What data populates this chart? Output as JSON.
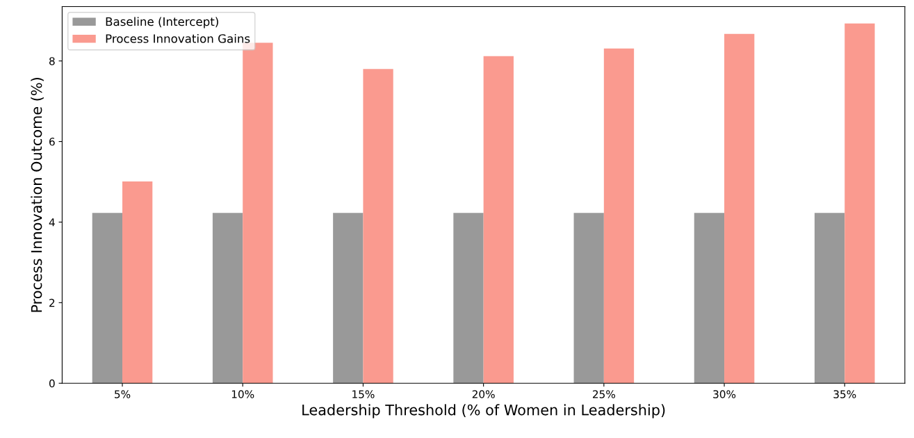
{
  "chart_data": {
    "type": "bar",
    "xlabel": "Leadership Threshold (% of Women in Leadership)",
    "ylabel": "Process Innovation Outcome (%)",
    "categories": [
      "5%",
      "10%",
      "15%",
      "20%",
      "25%",
      "30%",
      "35%"
    ],
    "series": [
      {
        "name": "Baseline (Intercept)",
        "color": "#999999",
        "values": [
          4.23,
          4.23,
          4.23,
          4.23,
          4.23,
          4.23,
          4.23
        ]
      },
      {
        "name": "Process Innovation Gains",
        "color": "#fa9a8f",
        "values": [
          5.01,
          8.45,
          7.8,
          8.12,
          8.31,
          8.67,
          8.93
        ]
      }
    ],
    "ylim": [
      0,
      9.35
    ],
    "yticks": [
      0,
      2,
      4,
      6,
      8
    ],
    "grid": false,
    "legend": "top left"
  }
}
